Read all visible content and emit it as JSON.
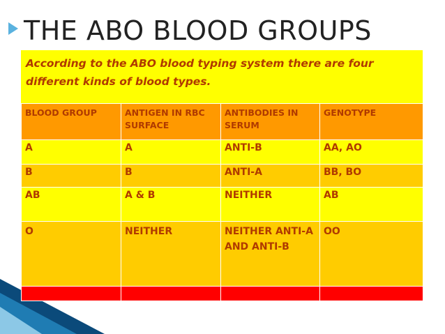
{
  "slide": {
    "title": "THE ABO BLOOD GROUPS",
    "intro": "According to the ABO blood typing system there are four different kinds of blood types."
  },
  "table": {
    "headers": [
      "BLOOD GROUP",
      "ANTIGEN IN RBC SURFACE",
      "ANTIBODIES IN SERUM",
      "GENOTYPE"
    ],
    "rows": [
      [
        "A",
        "A",
        "ANTI-B",
        "AA, AO"
      ],
      [
        "B",
        "B",
        "ANTI-A",
        "BB, BO"
      ],
      [
        "AB",
        "A & B",
        "NEITHER",
        "AB"
      ],
      [
        "O",
        "NEITHER",
        "NEITHER ANTI-A AND ANTI-B",
        "OO"
      ]
    ]
  },
  "colors": {
    "header_row": "#ff9900",
    "row_yellow": "#ffff00",
    "row_orange": "#ffcc00",
    "last_row": "#ff0000",
    "text": "#b03a00",
    "accent": "#1f7cb3"
  }
}
